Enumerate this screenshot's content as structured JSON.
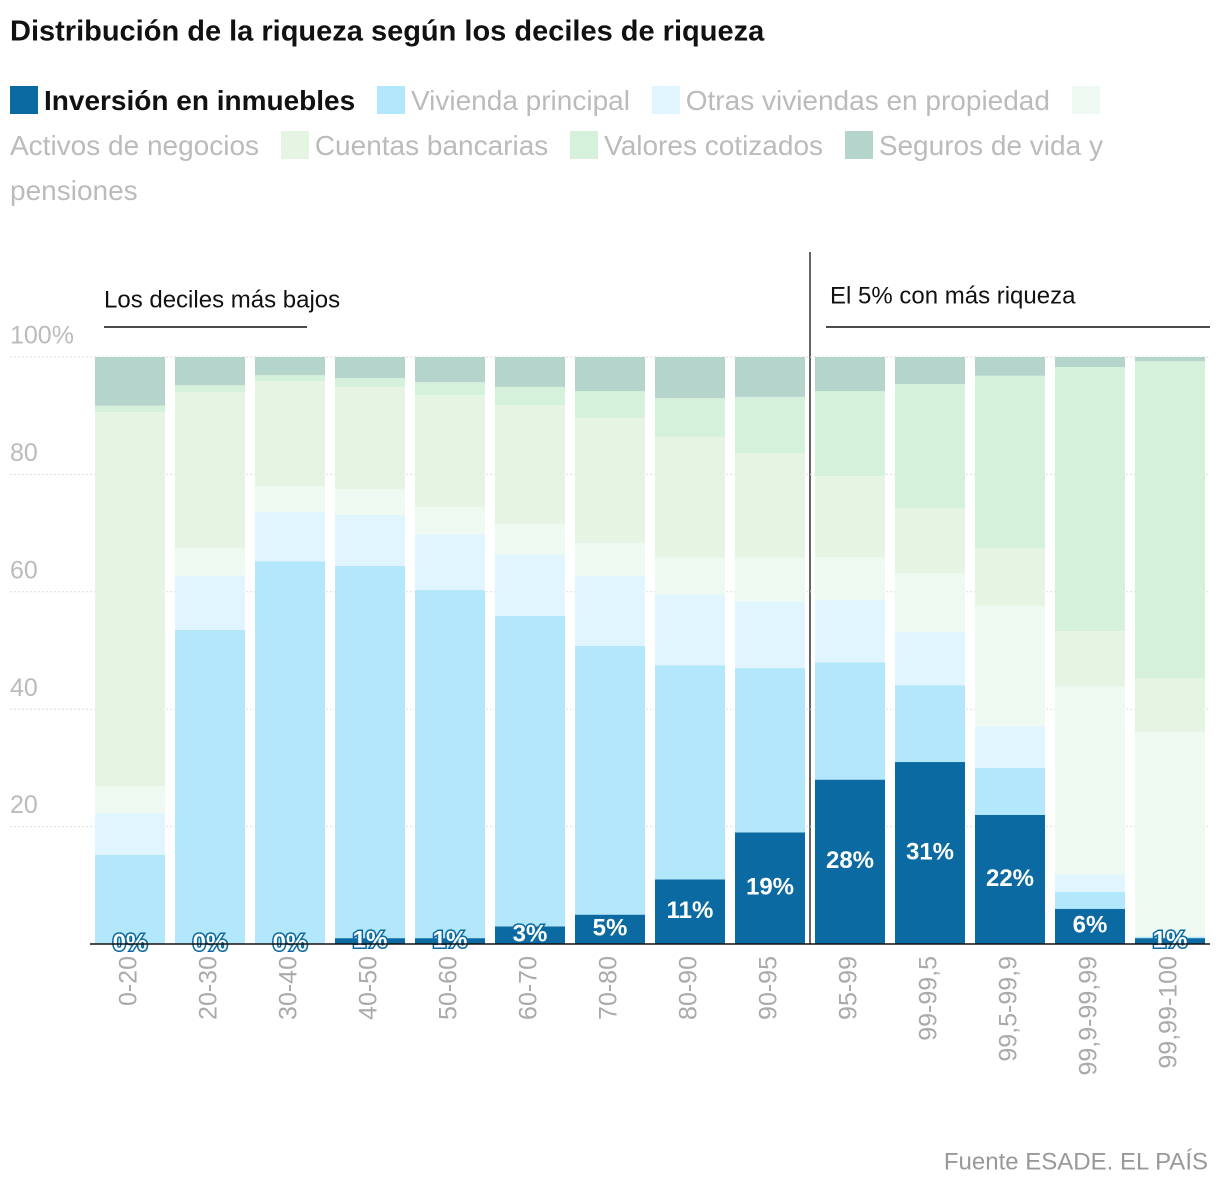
{
  "chart_data": {
    "type": "stacked_bar",
    "title": "Distribución de la riqueza según los deciles de riqueza",
    "annotations": [
      "Los deciles más bajos",
      "El 5% con más riqueza"
    ],
    "source": "Fuente ESADE. EL PAÍS",
    "categories": [
      "0-20",
      "20-30",
      "30-40",
      "40-50",
      "50-60",
      "60-70",
      "70-80",
      "80-90",
      "90-95",
      "95-99",
      "99-99,5",
      "99,5-99,9",
      "99,9-99,99",
      "99,99-100"
    ],
    "series": [
      {
        "name": "Inversión en inmuebles",
        "color": "#0a6aa1",
        "values": [
          0,
          0,
          0,
          1,
          1,
          3,
          5,
          11,
          19,
          28,
          31,
          22,
          6,
          1
        ],
        "value_labels": [
          "0%",
          "0%",
          "0%",
          "1%",
          "1%",
          "3%",
          "5%",
          "11%",
          "19%",
          "28%",
          "31%",
          "22%",
          "6%",
          "1%"
        ]
      },
      {
        "name": "Vivienda principal",
        "color": "#b3e8fc",
        "values": [
          15.2,
          53.5,
          65.2,
          63.4,
          59.3,
          52.9,
          45.8,
          36.5,
          28.0,
          20.0,
          13.1,
          8.0,
          2.9,
          0.2
        ]
      },
      {
        "name": "Otras viviendas en propiedad",
        "color": "#e0f5fd",
        "values": [
          7.1,
          9.2,
          8.4,
          8.7,
          9.5,
          10.5,
          11.9,
          12.1,
          11.3,
          10.6,
          9.1,
          7.1,
          3.0,
          0.2
        ]
      },
      {
        "name": "Activos de negocios",
        "color": "#eefaf1",
        "values": [
          4.6,
          4.8,
          4.4,
          4.4,
          4.6,
          5.2,
          5.6,
          6.2,
          7.5,
          7.3,
          10.0,
          20.5,
          31.9,
          34.7
        ]
      },
      {
        "name": "Cuentas bancarias",
        "color": "#e6f5e3",
        "values": [
          63.7,
          26.5,
          17.9,
          17.4,
          19.1,
          20.2,
          21.3,
          20.6,
          17.8,
          13.8,
          11.1,
          9.9,
          9.5,
          9.2
        ]
      },
      {
        "name": "Valores cotizados",
        "color": "#d5f0db",
        "values": [
          1.1,
          1.2,
          1.0,
          1.5,
          2.2,
          3.1,
          4.6,
          6.6,
          9.6,
          14.5,
          21.1,
          29.3,
          45.0,
          54.0
        ]
      },
      {
        "name": "Seguros de vida y pensiones",
        "color": "#b5d4cb",
        "values": [
          8.3,
          4.8,
          3.1,
          3.6,
          4.3,
          5.1,
          5.8,
          7.0,
          6.8,
          5.8,
          4.6,
          3.2,
          1.7,
          0.7
        ]
      }
    ],
    "ylim": [
      0,
      100
    ],
    "yticks": [
      20,
      40,
      60,
      {
        "value": 80,
        "label": "80"
      },
      {
        "value": 100,
        "label": "100%"
      }
    ],
    "grid": true
  }
}
